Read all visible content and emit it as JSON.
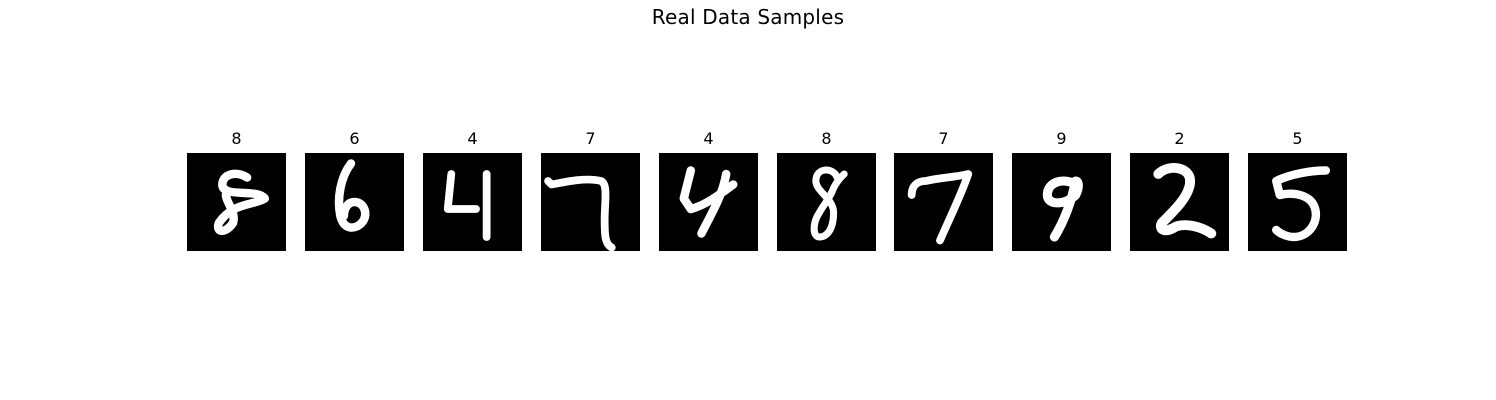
{
  "figure": {
    "title": "Real Data Samples"
  },
  "samples": [
    {
      "label": "8",
      "glyph": "8-slanted-open"
    },
    {
      "label": "6",
      "glyph": "6"
    },
    {
      "label": "4",
      "glyph": "4-open"
    },
    {
      "label": "7",
      "glyph": "7-hooked"
    },
    {
      "label": "4",
      "glyph": "4-slanted"
    },
    {
      "label": "8",
      "glyph": "8"
    },
    {
      "label": "7",
      "glyph": "7"
    },
    {
      "label": "9",
      "glyph": "9"
    },
    {
      "label": "2",
      "glyph": "2"
    },
    {
      "label": "5",
      "glyph": "5"
    }
  ],
  "colors": {
    "background": "#000000",
    "stroke": "#ffffff"
  }
}
